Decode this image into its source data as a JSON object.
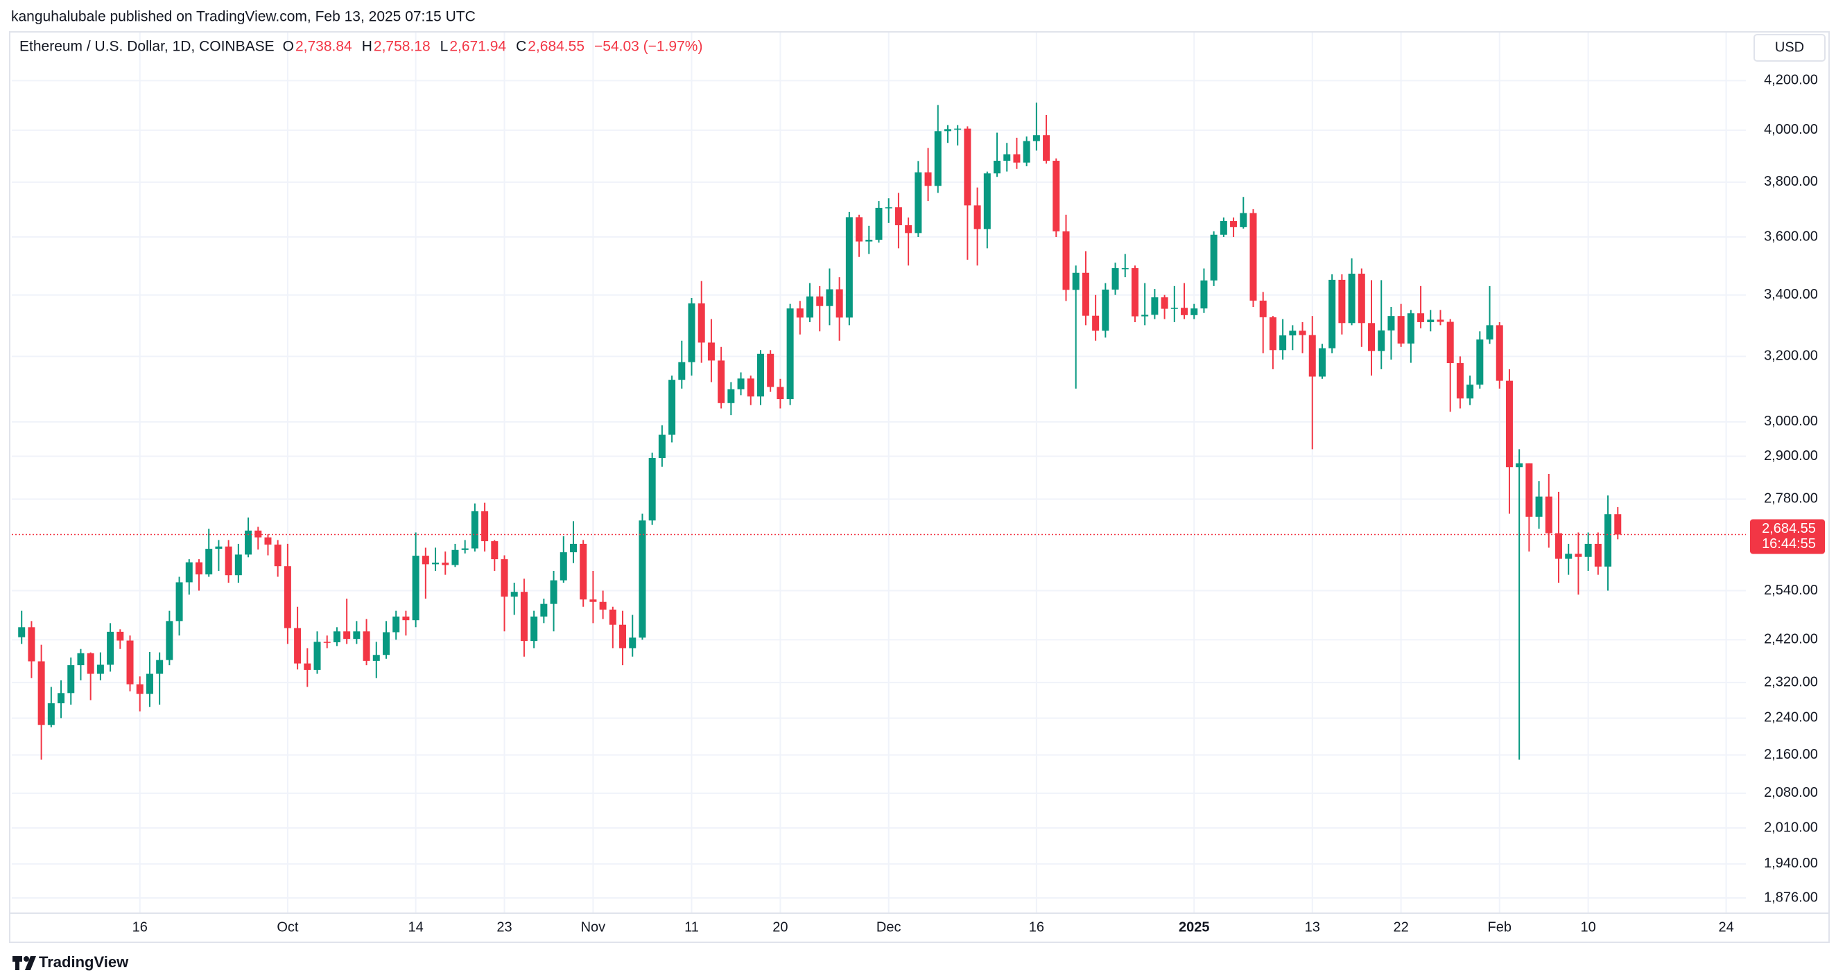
{
  "published": "kanguhalubale published on TradingView.com, Feb 13, 2025 07:15 UTC",
  "brand": "TradingView",
  "chart_data": {
    "type": "candlestick",
    "title": "Ethereum / U.S. Dollar, 1D, COINBASE",
    "currency": "USD",
    "ohlc_header": [
      {
        "label": "O",
        "value": "2,738.84"
      },
      {
        "label": "H",
        "value": "2,758.18"
      },
      {
        "label": "L",
        "value": "2,671.94"
      },
      {
        "label": "C",
        "value": "2,684.55"
      }
    ],
    "change": "−54.03 (−1.97%)",
    "last_price_label": "2,684.55",
    "countdown": "16:44:55",
    "up_color": "#089981",
    "down_color": "#f23645",
    "log_scale": true,
    "grid": true,
    "xlim": [
      "2024-09-03",
      "2025-02-26"
    ],
    "xticks": [
      {
        "value": "2024-09-16",
        "label": "16"
      },
      {
        "value": "2024-10-01",
        "label": "Oct"
      },
      {
        "value": "2024-10-14",
        "label": "14"
      },
      {
        "value": "2024-10-23",
        "label": "23"
      },
      {
        "value": "2024-11-01",
        "label": "Nov"
      },
      {
        "value": "2024-11-11",
        "label": "11"
      },
      {
        "value": "2024-11-20",
        "label": "20"
      },
      {
        "value": "2024-12-01",
        "label": "Dec"
      },
      {
        "value": "2024-12-16",
        "label": "16"
      },
      {
        "value": "2025-01-01",
        "label": "2025"
      },
      {
        "value": "2025-01-13",
        "label": "13"
      },
      {
        "value": "2025-01-22",
        "label": "22"
      },
      {
        "value": "2025-02-01",
        "label": "Feb"
      },
      {
        "value": "2025-02-10",
        "label": "10"
      },
      {
        "value": "2025-02-24",
        "label": "24"
      }
    ],
    "ylim": [
      1848,
      4404
    ],
    "yticks": [
      {
        "value": 4200,
        "label": "4,200.00"
      },
      {
        "value": 4000,
        "label": "4,000.00"
      },
      {
        "value": 3800,
        "label": "3,800.00"
      },
      {
        "value": 3600,
        "label": "3,600.00"
      },
      {
        "value": 3400,
        "label": "3,400.00"
      },
      {
        "value": 3200,
        "label": "3,200.00"
      },
      {
        "value": 3000,
        "label": "3,000.00"
      },
      {
        "value": 2900,
        "label": "2,900.00"
      },
      {
        "value": 2780,
        "label": "2,780.00"
      },
      {
        "value": 2540,
        "label": "2,540.00"
      },
      {
        "value": 2420,
        "label": "2,420.00"
      },
      {
        "value": 2320,
        "label": "2,320.00"
      },
      {
        "value": 2240,
        "label": "2,240.00"
      },
      {
        "value": 2160,
        "label": "2,160.00"
      },
      {
        "value": 2080,
        "label": "2,080.00"
      },
      {
        "value": 2010,
        "label": "2,010.00"
      },
      {
        "value": 1940,
        "label": "1,940.00"
      },
      {
        "value": 1876,
        "label": "1,876.00"
      }
    ],
    "x": [
      "2024-09-04",
      "2024-09-05",
      "2024-09-06",
      "2024-09-07",
      "2024-09-08",
      "2024-09-09",
      "2024-09-10",
      "2024-09-11",
      "2024-09-12",
      "2024-09-13",
      "2024-09-14",
      "2024-09-15",
      "2024-09-16",
      "2024-09-17",
      "2024-09-18",
      "2024-09-19",
      "2024-09-20",
      "2024-09-21",
      "2024-09-22",
      "2024-09-23",
      "2024-09-24",
      "2024-09-25",
      "2024-09-26",
      "2024-09-27",
      "2024-09-28",
      "2024-09-29",
      "2024-09-30",
      "2024-10-01",
      "2024-10-02",
      "2024-10-03",
      "2024-10-04",
      "2024-10-05",
      "2024-10-06",
      "2024-10-07",
      "2024-10-08",
      "2024-10-09",
      "2024-10-10",
      "2024-10-11",
      "2024-10-12",
      "2024-10-13",
      "2024-10-14",
      "2024-10-15",
      "2024-10-16",
      "2024-10-17",
      "2024-10-18",
      "2024-10-19",
      "2024-10-20",
      "2024-10-21",
      "2024-10-22",
      "2024-10-23",
      "2024-10-24",
      "2024-10-25",
      "2024-10-26",
      "2024-10-27",
      "2024-10-28",
      "2024-10-29",
      "2024-10-30",
      "2024-10-31",
      "2024-11-01",
      "2024-11-02",
      "2024-11-03",
      "2024-11-04",
      "2024-11-05",
      "2024-11-06",
      "2024-11-07",
      "2024-11-08",
      "2024-11-09",
      "2024-11-10",
      "2024-11-11",
      "2024-11-12",
      "2024-11-13",
      "2024-11-14",
      "2024-11-15",
      "2024-11-16",
      "2024-11-17",
      "2024-11-18",
      "2024-11-19",
      "2024-11-20",
      "2024-11-21",
      "2024-11-22",
      "2024-11-23",
      "2024-11-24",
      "2024-11-25",
      "2024-11-26",
      "2024-11-27",
      "2024-11-28",
      "2024-11-29",
      "2024-11-30",
      "2024-12-01",
      "2024-12-02",
      "2024-12-03",
      "2024-12-04",
      "2024-12-05",
      "2024-12-06",
      "2024-12-07",
      "2024-12-08",
      "2024-12-09",
      "2024-12-10",
      "2024-12-11",
      "2024-12-12",
      "2024-12-13",
      "2024-12-14",
      "2024-12-15",
      "2024-12-16",
      "2024-12-17",
      "2024-12-18",
      "2024-12-19",
      "2024-12-20",
      "2024-12-21",
      "2024-12-22",
      "2024-12-23",
      "2024-12-24",
      "2024-12-25",
      "2024-12-26",
      "2024-12-27",
      "2024-12-28",
      "2024-12-29",
      "2024-12-30",
      "2024-12-31",
      "2025-01-01",
      "2025-01-02",
      "2025-01-03",
      "2025-01-04",
      "2025-01-05",
      "2025-01-06",
      "2025-01-07",
      "2025-01-08",
      "2025-01-09",
      "2025-01-10",
      "2025-01-11",
      "2025-01-12",
      "2025-01-13",
      "2025-01-14",
      "2025-01-15",
      "2025-01-16",
      "2025-01-17",
      "2025-01-18",
      "2025-01-19",
      "2025-01-20",
      "2025-01-21",
      "2025-01-22",
      "2025-01-23",
      "2025-01-24",
      "2025-01-25",
      "2025-01-26",
      "2025-01-27",
      "2025-01-28",
      "2025-01-29",
      "2025-01-30",
      "2025-01-31",
      "2025-02-01",
      "2025-02-02",
      "2025-02-03",
      "2025-02-04",
      "2025-02-05",
      "2025-02-06",
      "2025-02-07",
      "2025-02-08",
      "2025-02-09",
      "2025-02-10",
      "2025-02-11",
      "2025-02-12",
      "2025-02-13"
    ],
    "open": [
      2426,
      2450,
      2369,
      2225,
      2273,
      2296,
      2360,
      2388,
      2340,
      2361,
      2439,
      2418,
      2316,
      2294,
      2340,
      2372,
      2465,
      2561,
      2612,
      2581,
      2647,
      2653,
      2579,
      2632,
      2695,
      2677,
      2658,
      2602,
      2448,
      2364,
      2349,
      2415,
      2414,
      2440,
      2422,
      2440,
      2370,
      2384,
      2438,
      2476,
      2467,
      2629,
      2607,
      2611,
      2605,
      2644,
      2648,
      2747,
      2667,
      2620,
      2525,
      2537,
      2417,
      2476,
      2507,
      2566,
      2638,
      2660,
      2518,
      2512,
      2493,
      2456,
      2400,
      2425,
      2722,
      2895,
      2962,
      3127,
      3182,
      3372,
      3244,
      3187,
      3056,
      3098,
      3131,
      3076,
      3208,
      3105,
      3068,
      3355,
      3325,
      3395,
      3363,
      3419,
      3325,
      3671,
      3584,
      3590,
      3705,
      3707,
      3642,
      3614,
      3837,
      3786,
      3996,
      4004,
      4006,
      3714,
      3628,
      3833,
      3881,
      3906,
      3874,
      3957,
      3980,
      3881,
      3620,
      3417,
      3475,
      3331,
      3282,
      3418,
      3491,
      3491,
      3329,
      3334,
      3392,
      3354,
      3357,
      3333,
      3355,
      3449,
      3608,
      3657,
      3635,
      3686,
      3381,
      3326,
      3220,
      3267,
      3282,
      3268,
      3137,
      3226,
      3451,
      3307,
      3472,
      3307,
      3217,
      3283,
      3330,
      3241,
      3339,
      3310,
      3318,
      3311,
      3179,
      3070,
      3112,
      3254,
      3300,
      3124,
      2869,
      2880,
      2732,
      2787,
      2688,
      2621,
      2634,
      2626,
      2660,
      2601,
      2738.84
    ],
    "high": [
      2490,
      2465,
      2408,
      2310,
      2325,
      2378,
      2398,
      2390,
      2390,
      2460,
      2445,
      2430,
      2334,
      2391,
      2390,
      2490,
      2575,
      2620,
      2620,
      2700,
      2670,
      2670,
      2660,
      2730,
      2705,
      2685,
      2670,
      2660,
      2500,
      2400,
      2440,
      2430,
      2450,
      2520,
      2465,
      2470,
      2415,
      2465,
      2490,
      2490,
      2690,
      2650,
      2650,
      2640,
      2660,
      2670,
      2768,
      2770,
      2670,
      2630,
      2560,
      2570,
      2490,
      2520,
      2590,
      2680,
      2720,
      2670,
      2590,
      2540,
      2500,
      2490,
      2480,
      2740,
      2910,
      2990,
      3140,
      3250,
      3390,
      3447,
      3320,
      3230,
      3120,
      3150,
      3140,
      3220,
      3220,
      3130,
      3370,
      3380,
      3440,
      3430,
      3490,
      3460,
      3690,
      3680,
      3640,
      3730,
      3740,
      3760,
      3670,
      3880,
      3930,
      4100,
      4020,
      4020,
      4015,
      3780,
      3840,
      3990,
      3950,
      3970,
      3975,
      4110,
      4060,
      3890,
      3680,
      3500,
      3550,
      3400,
      3440,
      3510,
      3540,
      3500,
      3440,
      3420,
      3400,
      3430,
      3440,
      3370,
      3490,
      3620,
      3670,
      3670,
      3745,
      3700,
      3410,
      3330,
      3320,
      3300,
      3310,
      3330,
      3240,
      3470,
      3470,
      3525,
      3490,
      3450,
      3450,
      3360,
      3370,
      3350,
      3430,
      3350,
      3350,
      3320,
      3200,
      3140,
      3280,
      3430,
      3310,
      3160,
      2920,
      2880,
      2830,
      2850,
      2800,
      2660,
      2690,
      2690,
      2690,
      2790,
      2758.18
    ],
    "low": [
      2410,
      2330,
      2150,
      2220,
      2240,
      2270,
      2325,
      2280,
      2325,
      2345,
      2398,
      2300,
      2255,
      2265,
      2270,
      2360,
      2430,
      2530,
      2540,
      2575,
      2590,
      2560,
      2560,
      2625,
      2645,
      2630,
      2575,
      2410,
      2350,
      2310,
      2340,
      2400,
      2405,
      2410,
      2410,
      2360,
      2330,
      2375,
      2420,
      2430,
      2450,
      2520,
      2590,
      2580,
      2600,
      2635,
      2640,
      2640,
      2590,
      2440,
      2480,
      2380,
      2400,
      2460,
      2440,
      2560,
      2610,
      2500,
      2460,
      2470,
      2400,
      2360,
      2380,
      2420,
      2710,
      2870,
      2940,
      3100,
      3140,
      3180,
      3120,
      3040,
      3020,
      3080,
      3050,
      3050,
      3090,
      3040,
      3050,
      3270,
      3310,
      3280,
      3300,
      3250,
      3300,
      3530,
      3540,
      3580,
      3650,
      3560,
      3500,
      3600,
      3730,
      3760,
      3950,
      3940,
      3520,
      3500,
      3560,
      3820,
      3840,
      3850,
      3860,
      3920,
      3870,
      3600,
      3380,
      3100,
      3300,
      3250,
      3260,
      3400,
      3460,
      3310,
      3300,
      3320,
      3320,
      3310,
      3320,
      3320,
      3340,
      3430,
      3600,
      3600,
      3630,
      3360,
      3210,
      3160,
      3190,
      3220,
      3210,
      2920,
      3130,
      3210,
      3270,
      3300,
      3230,
      3140,
      3160,
      3190,
      3230,
      3180,
      3290,
      3280,
      3300,
      3030,
      3040,
      3050,
      3100,
      3240,
      3100,
      2740,
      2150,
      2640,
      2700,
      2650,
      2560,
      2580,
      2530,
      2590,
      2580,
      2540,
      2671.94
    ],
    "close": [
      2450,
      2369,
      2225,
      2273,
      2296,
      2360,
      2388,
      2340,
      2361,
      2439,
      2418,
      2316,
      2294,
      2340,
      2372,
      2465,
      2561,
      2612,
      2581,
      2647,
      2653,
      2579,
      2632,
      2695,
      2677,
      2658,
      2602,
      2448,
      2364,
      2349,
      2415,
      2414,
      2440,
      2422,
      2440,
      2370,
      2384,
      2438,
      2476,
      2467,
      2629,
      2607,
      2611,
      2605,
      2644,
      2648,
      2747,
      2667,
      2620,
      2525,
      2537,
      2417,
      2476,
      2507,
      2566,
      2638,
      2660,
      2518,
      2512,
      2493,
      2456,
      2400,
      2425,
      2722,
      2895,
      2962,
      3127,
      3182,
      3372,
      3244,
      3187,
      3056,
      3098,
      3131,
      3076,
      3208,
      3105,
      3068,
      3355,
      3325,
      3395,
      3363,
      3419,
      3325,
      3671,
      3584,
      3590,
      3705,
      3707,
      3642,
      3614,
      3837,
      3786,
      3996,
      4004,
      4006,
      3714,
      3628,
      3833,
      3881,
      3906,
      3874,
      3957,
      3980,
      3881,
      3620,
      3417,
      3475,
      3331,
      3282,
      3418,
      3491,
      3491,
      3329,
      3334,
      3392,
      3354,
      3357,
      3333,
      3355,
      3449,
      3608,
      3657,
      3635,
      3686,
      3381,
      3326,
      3220,
      3267,
      3282,
      3268,
      3137,
      3226,
      3451,
      3307,
      3472,
      3307,
      3217,
      3283,
      3330,
      3241,
      3339,
      3310,
      3318,
      3311,
      3179,
      3070,
      3112,
      3254,
      3300,
      3124,
      2869,
      2880,
      2732,
      2787,
      2688,
      2621,
      2634,
      2626,
      2660,
      2601,
      2738.84,
      2684.55
    ]
  }
}
